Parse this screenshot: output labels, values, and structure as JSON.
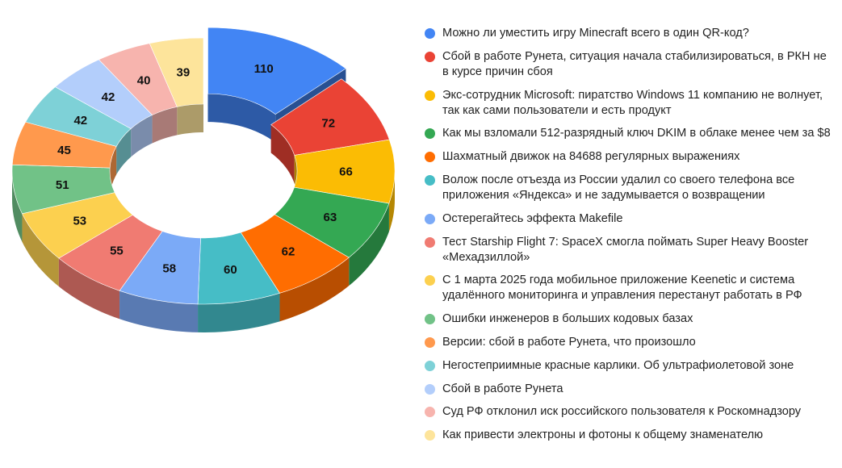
{
  "chart_data": {
    "type": "pie",
    "style": "3d-donut",
    "first_slice_exploded": true,
    "series": [
      {
        "name": "",
        "values": [
          110,
          72,
          66,
          63,
          62,
          60,
          58,
          55,
          53,
          51,
          45,
          42,
          42,
          40,
          39
        ]
      }
    ],
    "categories": [
      "Можно ли уместить игру Minecraft всего в один QR-код?",
      "Сбой в работе Рунета, ситуация начала стабилизироваться, в РКН не в курсе причин сбоя",
      "Экс-сотрудник Microsoft: пиратство Windows 11 компанию не волнует, так как сами пользователи и есть продукт",
      "Как мы взломали 512-разрядный ключ DKIM в облаке менее чем за $8",
      "Шахматный движок на 84688 регулярных выражениях",
      "Волож после отъезда из России удалил со своего телефона все приложения «Яндекса» и не задумывается о возвращении",
      "Остерегайтесь эффекта Makefile",
      "Тест Starship Flight 7: SpaceX смогла поймать Super Heavy Booster «Мехадзиллой»",
      "С 1 марта 2025 года мобильное приложение Keenetic и система удалённого мониторинга и управления перестанут работать в РФ",
      "Ошибки инженеров в больших кодовых базах",
      "Версии: сбой в работе Рунета, что произошло",
      "Негостеприимные красные карлики. Об ультрафиолетовой зоне",
      "Сбой в работе Рунета",
      "Суд РФ отклонил иск российского пользователя к Роскомнадзору",
      "Как привести электроны и фотоны к общему знаменателю"
    ],
    "colors": [
      "#4285f4",
      "#ea4335",
      "#fbbc04",
      "#34a853",
      "#ff6d01",
      "#46bdc6",
      "#7baaf7",
      "#f07b72",
      "#fcd04f",
      "#71c287",
      "#ff994d",
      "#7ed1d7",
      "#b3cefb",
      "#f7b4ae",
      "#fde49b"
    ],
    "legend_position": "right",
    "title": ""
  }
}
